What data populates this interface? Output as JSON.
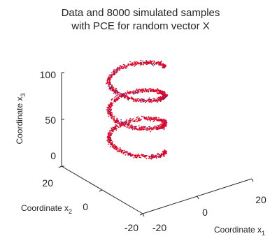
{
  "chart_data": {
    "type": "scatter",
    "dimensions": 3,
    "title_lines": [
      "Data and 8000 simulated samples",
      "with PCE for random vector X"
    ],
    "xlabel": "Coordinate x",
    "xlabel_sub": "1",
    "ylabel": "Coordinate x",
    "ylabel_sub": "2",
    "zlabel": "Coordinate x",
    "zlabel_sub": "3",
    "xlim": [
      -20,
      20
    ],
    "ylim": [
      -20,
      20
    ],
    "zlim": [
      0,
      100
    ],
    "xticks": [
      "-20",
      "0",
      "20"
    ],
    "yticks": [
      "-20",
      "0",
      "20"
    ],
    "zticks": [
      "0",
      "50",
      "100"
    ],
    "grid": false,
    "series": [
      {
        "shape": "helix",
        "turns": 3,
        "radius": 10,
        "z_range": [
          5,
          95
        ],
        "color": "#e8001c",
        "overlay_color": "#2233cc",
        "sample_count": 8000
      }
    ]
  }
}
